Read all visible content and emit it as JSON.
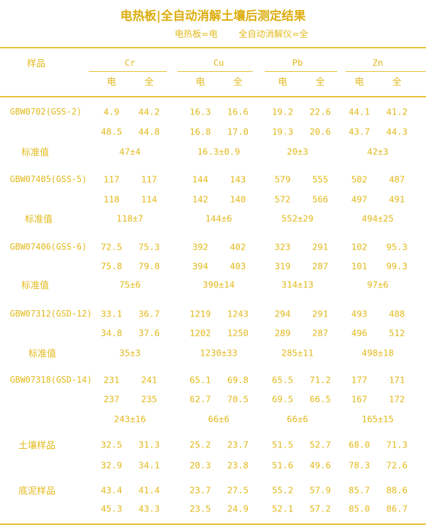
{
  "title": "电热板|全自动消解土壤后测定结果",
  "legend": {
    "electric": "电热板=电",
    "auto": "全自动消解仪=全"
  },
  "header": {
    "sample_label": "样品",
    "elements": [
      "Cr",
      "Cu",
      "Pb",
      "Zn"
    ],
    "sub": [
      "电",
      "全"
    ]
  },
  "std_label": "标准值",
  "samples": [
    {
      "name": "GBW0702(GSS-2)",
      "rows": [
        [
          "4.9",
          "44.2",
          "16.3",
          "16.6",
          "19.2",
          "22.6",
          "44.1",
          "41.2"
        ],
        [
          "48.5",
          "44.8",
          "16.8",
          "17.0",
          "19.3",
          "20.6",
          "43.7",
          "44.3"
        ]
      ],
      "std_label": "标准值",
      "std": [
        "47±4",
        "16.3±0.9",
        "20±3",
        "42±3"
      ]
    },
    {
      "name": "GBW07405(GSS-5)",
      "rows": [
        [
          "117",
          "117",
          "144",
          "143",
          "579",
          "555",
          "502",
          "487"
        ],
        [
          "118",
          "114",
          "142",
          "140",
          "572",
          "566",
          "497",
          "491"
        ]
      ],
      "std_label": "标准值",
      "std": [
        "118±7",
        "144±6",
        "552±29",
        "494±25"
      ]
    },
    {
      "name": "GBW07406(GSS-6)",
      "rows": [
        [
          "72.5",
          "75.3",
          "392",
          "402",
          "323",
          "291",
          "102",
          "95.3"
        ],
        [
          "75.8",
          "79.8",
          "394",
          "403",
          "319",
          "287",
          "101",
          "99.3"
        ]
      ],
      "std_label": "标准值",
      "std": [
        "75±6",
        "390±14",
        "314±13",
        "97±6"
      ]
    },
    {
      "name": "GBW07312(GSD-12)",
      "rows": [
        [
          "33.1",
          "36.7",
          "1219",
          "1243",
          "294",
          "291",
          "493",
          "488"
        ],
        [
          "34.8",
          "37.6",
          "1202",
          "1250",
          "289",
          "287",
          "496",
          "512"
        ]
      ],
      "std_label": "标准值",
      "std": [
        "35±3",
        "1230±33",
        "285±11",
        "498±18"
      ]
    },
    {
      "name": "GBW07318(GSD-14)",
      "rows": [
        [
          "231",
          "241",
          "65.1",
          "69.8",
          "65.5",
          "71.2",
          "177",
          "171"
        ],
        [
          "237",
          "235",
          "62.7",
          "70.5",
          "69.5",
          "66.5",
          "167",
          "172"
        ]
      ],
      "std": [
        "243±16",
        "66±6",
        "66±6",
        "165±15"
      ]
    },
    {
      "name": "土壤样品",
      "rows": [
        [
          "32.5",
          "31.3",
          "25.2",
          "23.7",
          "51.5",
          "52.7",
          "68.0",
          "71.3"
        ],
        [
          "32.9",
          "34.1",
          "20.3",
          "23.8",
          "51.6",
          "49.6",
          "78.3",
          "72.6"
        ]
      ]
    },
    {
      "name": "底泥样品",
      "rows": [
        [
          "43.4",
          "41.4",
          "23.7",
          "27.5",
          "55.2",
          "57.9",
          "85.7",
          "88.6"
        ],
        [
          "45.3",
          "43.3",
          "23.5",
          "24.9",
          "52.1",
          "57.2",
          "85.0",
          "86.7"
        ]
      ]
    }
  ],
  "colors": {
    "text": "#e2b91c",
    "title": "#dcae10",
    "rule": "#e6c23a"
  }
}
